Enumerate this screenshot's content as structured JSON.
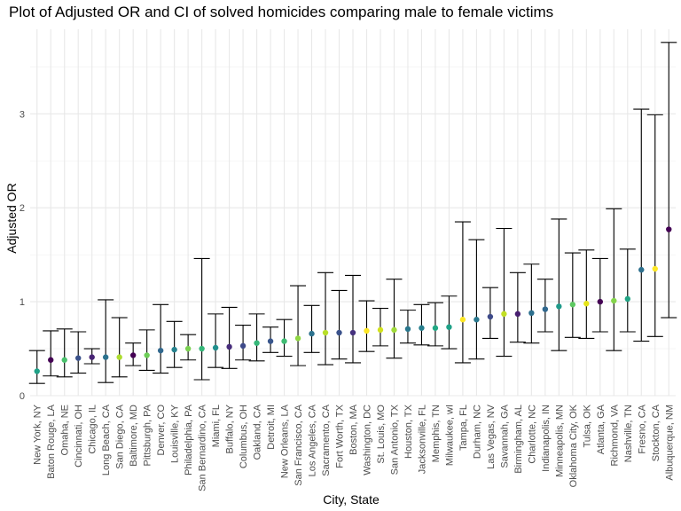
{
  "chart_data": {
    "type": "scatter",
    "title": "Plot of Adjusted OR and CI of solved homicides comparing male to female victims",
    "xlabel": "City, State",
    "ylabel": "Adjusted OR",
    "ylim": [
      0,
      3.9
    ],
    "yticks": [
      0,
      1,
      2,
      3
    ],
    "grid": true,
    "legend": "none",
    "points": [
      {
        "city": "New York, NY",
        "or": 0.26,
        "lo": 0.13,
        "hi": 0.48,
        "color": "#1fa187"
      },
      {
        "city": "Baton Rouge, LA",
        "or": 0.38,
        "lo": 0.21,
        "hi": 0.69,
        "color": "#440154"
      },
      {
        "city": "Omaha, NE",
        "or": 0.38,
        "lo": 0.2,
        "hi": 0.71,
        "color": "#4ac16d"
      },
      {
        "city": "Cincinnati, OH",
        "or": 0.4,
        "lo": 0.24,
        "hi": 0.68,
        "color": "#3b528b"
      },
      {
        "city": "Chicago, IL",
        "or": 0.41,
        "lo": 0.34,
        "hi": 0.5,
        "color": "#482475"
      },
      {
        "city": "Long Beach, CA",
        "or": 0.41,
        "lo": 0.14,
        "hi": 1.02,
        "color": "#2c728e"
      },
      {
        "city": "San Diego, CA",
        "or": 0.41,
        "lo": 0.2,
        "hi": 0.83,
        "color": "#addc30"
      },
      {
        "city": "Baltimore, MD",
        "or": 0.43,
        "lo": 0.32,
        "hi": 0.56,
        "color": "#440154"
      },
      {
        "city": "Pittsburgh, PA",
        "or": 0.43,
        "lo": 0.27,
        "hi": 0.7,
        "color": "#6ece58"
      },
      {
        "city": "Denver, CO",
        "or": 0.48,
        "lo": 0.24,
        "hi": 0.97,
        "color": "#31688e"
      },
      {
        "city": "Louisville, KY",
        "or": 0.49,
        "lo": 0.3,
        "hi": 0.79,
        "color": "#26828e"
      },
      {
        "city": "Philadelphia, PA",
        "or": 0.5,
        "lo": 0.38,
        "hi": 0.65,
        "color": "#7ad151"
      },
      {
        "city": "San Bernardino, CA",
        "or": 0.5,
        "lo": 0.17,
        "hi": 1.46,
        "color": "#35b779"
      },
      {
        "city": "Miami, FL",
        "or": 0.51,
        "lo": 0.3,
        "hi": 0.87,
        "color": "#21908d"
      },
      {
        "city": "Buffalo, NY",
        "or": 0.52,
        "lo": 0.29,
        "hi": 0.94,
        "color": "#472d7b"
      },
      {
        "city": "Columbus, OH",
        "or": 0.53,
        "lo": 0.38,
        "hi": 0.75,
        "color": "#3e4a89"
      },
      {
        "city": "Oakland, CA",
        "or": 0.56,
        "lo": 0.37,
        "hi": 0.87,
        "color": "#35b779"
      },
      {
        "city": "Detroit, MI",
        "or": 0.58,
        "lo": 0.46,
        "hi": 0.73,
        "color": "#39568c"
      },
      {
        "city": "New Orleans, LA",
        "or": 0.58,
        "lo": 0.42,
        "hi": 0.81,
        "color": "#3fbc73"
      },
      {
        "city": "San Francisco, CA",
        "or": 0.61,
        "lo": 0.32,
        "hi": 1.17,
        "color": "#90d743"
      },
      {
        "city": "Los Angeles, CA",
        "or": 0.66,
        "lo": 0.46,
        "hi": 0.96,
        "color": "#2c728e"
      },
      {
        "city": "Sacramento, CA",
        "or": 0.67,
        "lo": 0.33,
        "hi": 1.31,
        "color": "#b8de29"
      },
      {
        "city": "Fort Worth, TX",
        "or": 0.67,
        "lo": 0.39,
        "hi": 1.12,
        "color": "#3b528b"
      },
      {
        "city": "Boston, MA",
        "or": 0.67,
        "lo": 0.35,
        "hi": 1.28,
        "color": "#46327e"
      },
      {
        "city": "Washington, DC",
        "or": 0.69,
        "lo": 0.47,
        "hi": 1.01,
        "color": "#fde725"
      },
      {
        "city": "St. Louis, MO",
        "or": 0.7,
        "lo": 0.53,
        "hi": 0.93,
        "color": "#d2e21b"
      },
      {
        "city": "San Antonio, TX",
        "or": 0.7,
        "lo": 0.4,
        "hi": 1.24,
        "color": "#a0da39"
      },
      {
        "city": "Houston, TX",
        "or": 0.71,
        "lo": 0.56,
        "hi": 0.91,
        "color": "#2a788e"
      },
      {
        "city": "Jacksonville, FL",
        "or": 0.72,
        "lo": 0.54,
        "hi": 0.97,
        "color": "#277f8e"
      },
      {
        "city": "Memphis, TN",
        "or": 0.72,
        "lo": 0.53,
        "hi": 0.99,
        "color": "#22a884"
      },
      {
        "city": "Milwaukee, wI",
        "or": 0.73,
        "lo": 0.5,
        "hi": 1.06,
        "color": "#1fa187"
      },
      {
        "city": "Tampa, FL",
        "or": 0.81,
        "lo": 0.35,
        "hi": 1.85,
        "color": "#fde725"
      },
      {
        "city": "Durham, NC",
        "or": 0.81,
        "lo": 0.39,
        "hi": 1.66,
        "color": "#2a788e"
      },
      {
        "city": "Las Vegas, NV",
        "or": 0.84,
        "lo": 0.61,
        "hi": 1.15,
        "color": "#3e4a89"
      },
      {
        "city": "Savannah, GA",
        "or": 0.87,
        "lo": 0.42,
        "hi": 1.78,
        "color": "#c2df23"
      },
      {
        "city": "Birmingham, AL",
        "or": 0.87,
        "lo": 0.57,
        "hi": 1.31,
        "color": "#481f70"
      },
      {
        "city": "Charlotte, NC",
        "or": 0.88,
        "lo": 0.56,
        "hi": 1.4,
        "color": "#2d708e"
      },
      {
        "city": "Indianapolis, IN",
        "or": 0.92,
        "lo": 0.68,
        "hi": 1.24,
        "color": "#31688e"
      },
      {
        "city": "Minneapolis, MN",
        "or": 0.95,
        "lo": 0.48,
        "hi": 1.88,
        "color": "#1f9a8a"
      },
      {
        "city": "Oklahoma City, OK",
        "or": 0.97,
        "lo": 0.62,
        "hi": 1.52,
        "color": "#5ec962"
      },
      {
        "city": "Tulsa, OK",
        "or": 0.98,
        "lo": 0.61,
        "hi": 1.55,
        "color": "#e5e419"
      },
      {
        "city": "Atlanta, GA",
        "or": 1.0,
        "lo": 0.68,
        "hi": 1.46,
        "color": "#440154"
      },
      {
        "city": "Richmond, VA",
        "or": 1.01,
        "lo": 0.48,
        "hi": 1.99,
        "color": "#84d44b"
      },
      {
        "city": "Nashville, TN",
        "or": 1.03,
        "lo": 0.68,
        "hi": 1.56,
        "color": "#21a585"
      },
      {
        "city": "Fresno, CA",
        "or": 1.34,
        "lo": 0.58,
        "hi": 3.05,
        "color": "#2d708e"
      },
      {
        "city": "Stockton, CA",
        "or": 1.35,
        "lo": 0.63,
        "hi": 2.99,
        "color": "#fde725"
      },
      {
        "city": "Albuquerque, NM",
        "or": 1.77,
        "lo": 0.83,
        "hi": 3.76,
        "color": "#440154"
      }
    ]
  }
}
